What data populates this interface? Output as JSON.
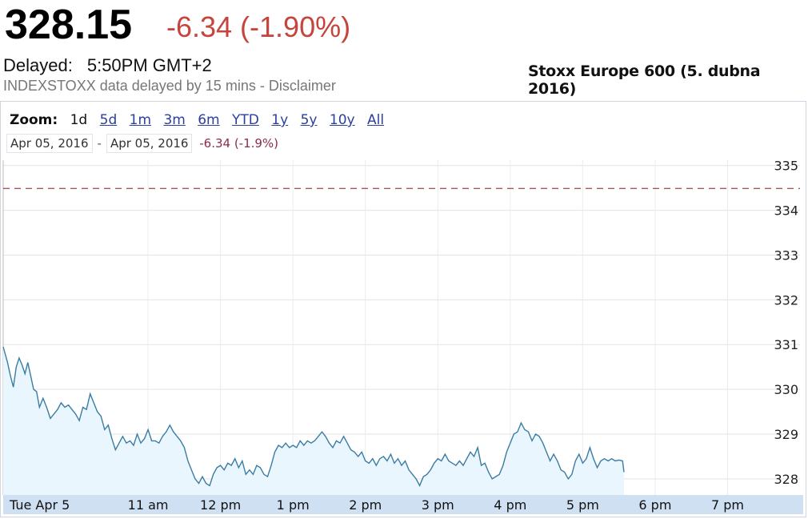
{
  "header": {
    "price": "328.15",
    "change": "-6.34 (-1.90%)",
    "delayed_label": "Delayed:",
    "delayed_time": "5:50PM GMT+2",
    "disclaimer": "INDEXSTOXX data delayed by 15 mins - Disclaimer",
    "title": "Stoxx Europe 600 (5. dubna 2016)"
  },
  "zoom": {
    "label": "Zoom:",
    "options": [
      "1d",
      "5d",
      "1m",
      "3m",
      "6m",
      "YTD",
      "1y",
      "5y",
      "10y",
      "All"
    ],
    "selected": "1d"
  },
  "range": {
    "from": "Apr 05, 2016",
    "separator": "-",
    "to": "Apr 05, 2016",
    "change": "-6.34 (-1.9%)"
  },
  "colors": {
    "line": "#3b7ca3",
    "fill": "#eaf6fd",
    "prev_close": "#8b1c1c",
    "axis_band": "#cfe0f2",
    "change_negative": "#c5453e"
  },
  "chart_data": {
    "type": "line",
    "x_unit": "hour",
    "x_ticks": [
      {
        "x": 9.0,
        "label": "Tue Apr 5"
      },
      {
        "x": 11.0,
        "label": "11 am"
      },
      {
        "x": 12.0,
        "label": "12 pm"
      },
      {
        "x": 13.0,
        "label": "1 pm"
      },
      {
        "x": 14.0,
        "label": "2 pm"
      },
      {
        "x": 15.0,
        "label": "3 pm"
      },
      {
        "x": 16.0,
        "label": "4 pm"
      },
      {
        "x": 17.0,
        "label": "5 pm"
      },
      {
        "x": 18.0,
        "label": "6 pm"
      },
      {
        "x": 19.0,
        "label": "7 pm"
      }
    ],
    "xlim": [
      9.0,
      20.0
    ],
    "y_ticks": [
      328,
      329,
      330,
      331,
      332,
      333,
      334,
      335
    ],
    "ylim": [
      327.64,
      335.12
    ],
    "previous_close": 334.49,
    "grid": true,
    "series": [
      {
        "points": [
          [
            9.0,
            330.95
          ],
          [
            9.06,
            330.6
          ],
          [
            9.1,
            330.3
          ],
          [
            9.14,
            330.05
          ],
          [
            9.18,
            330.5
          ],
          [
            9.22,
            330.7
          ],
          [
            9.26,
            330.55
          ],
          [
            9.3,
            330.35
          ],
          [
            9.34,
            330.6
          ],
          [
            9.38,
            330.3
          ],
          [
            9.42,
            330.0
          ],
          [
            9.46,
            329.95
          ],
          [
            9.5,
            329.6
          ],
          [
            9.55,
            329.8
          ],
          [
            9.6,
            329.6
          ],
          [
            9.65,
            329.35
          ],
          [
            9.7,
            329.45
          ],
          [
            9.75,
            329.55
          ],
          [
            9.8,
            329.7
          ],
          [
            9.85,
            329.6
          ],
          [
            9.9,
            329.65
          ],
          [
            9.95,
            329.55
          ],
          [
            10.0,
            329.45
          ],
          [
            10.05,
            329.3
          ],
          [
            10.1,
            329.6
          ],
          [
            10.15,
            329.55
          ],
          [
            10.2,
            329.9
          ],
          [
            10.25,
            329.7
          ],
          [
            10.3,
            329.5
          ],
          [
            10.35,
            329.4
          ],
          [
            10.4,
            329.1
          ],
          [
            10.45,
            329.2
          ],
          [
            10.5,
            328.9
          ],
          [
            10.55,
            328.65
          ],
          [
            10.6,
            328.8
          ],
          [
            10.65,
            328.95
          ],
          [
            10.7,
            328.8
          ],
          [
            10.75,
            328.85
          ],
          [
            10.8,
            328.75
          ],
          [
            10.85,
            329.0
          ],
          [
            10.9,
            328.8
          ],
          [
            10.95,
            328.9
          ],
          [
            11.0,
            329.1
          ],
          [
            11.05,
            328.85
          ],
          [
            11.1,
            328.85
          ],
          [
            11.15,
            328.8
          ],
          [
            11.2,
            328.95
          ],
          [
            11.25,
            329.05
          ],
          [
            11.3,
            329.2
          ],
          [
            11.35,
            329.05
          ],
          [
            11.4,
            328.95
          ],
          [
            11.45,
            328.85
          ],
          [
            11.5,
            328.7
          ],
          [
            11.55,
            328.4
          ],
          [
            11.6,
            328.2
          ],
          [
            11.65,
            328.0
          ],
          [
            11.7,
            327.9
          ],
          [
            11.75,
            328.05
          ],
          [
            11.8,
            327.9
          ],
          [
            11.85,
            327.85
          ],
          [
            11.9,
            328.1
          ],
          [
            11.95,
            328.25
          ],
          [
            12.0,
            328.3
          ],
          [
            12.05,
            328.2
          ],
          [
            12.1,
            328.35
          ],
          [
            12.15,
            328.3
          ],
          [
            12.2,
            328.45
          ],
          [
            12.25,
            328.25
          ],
          [
            12.3,
            328.4
          ],
          [
            12.35,
            328.1
          ],
          [
            12.4,
            328.2
          ],
          [
            12.45,
            328.1
          ],
          [
            12.5,
            328.3
          ],
          [
            12.55,
            328.25
          ],
          [
            12.6,
            328.1
          ],
          [
            12.65,
            328.05
          ],
          [
            12.7,
            328.3
          ],
          [
            12.75,
            328.6
          ],
          [
            12.8,
            328.75
          ],
          [
            12.85,
            328.7
          ],
          [
            12.9,
            328.8
          ],
          [
            12.95,
            328.7
          ],
          [
            13.0,
            328.75
          ],
          [
            13.05,
            328.7
          ],
          [
            13.1,
            328.85
          ],
          [
            13.15,
            328.75
          ],
          [
            13.2,
            328.85
          ],
          [
            13.25,
            328.8
          ],
          [
            13.3,
            328.85
          ],
          [
            13.35,
            328.95
          ],
          [
            13.4,
            329.05
          ],
          [
            13.45,
            328.95
          ],
          [
            13.5,
            328.8
          ],
          [
            13.55,
            328.7
          ],
          [
            13.6,
            328.85
          ],
          [
            13.65,
            328.8
          ],
          [
            13.7,
            328.95
          ],
          [
            13.75,
            328.8
          ],
          [
            13.8,
            328.65
          ],
          [
            13.85,
            328.6
          ],
          [
            13.9,
            328.5
          ],
          [
            13.95,
            328.6
          ],
          [
            14.0,
            328.4
          ],
          [
            14.05,
            328.35
          ],
          [
            14.1,
            328.45
          ],
          [
            14.15,
            328.3
          ],
          [
            14.2,
            328.45
          ],
          [
            14.25,
            328.5
          ],
          [
            14.3,
            328.4
          ],
          [
            14.35,
            328.55
          ],
          [
            14.4,
            328.35
          ],
          [
            14.45,
            328.45
          ],
          [
            14.5,
            328.3
          ],
          [
            14.55,
            328.4
          ],
          [
            14.6,
            328.2
          ],
          [
            14.65,
            328.1
          ],
          [
            14.7,
            328.0
          ],
          [
            14.75,
            327.85
          ],
          [
            14.8,
            328.05
          ],
          [
            14.85,
            328.1
          ],
          [
            14.9,
            328.2
          ],
          [
            14.95,
            328.35
          ],
          [
            15.0,
            328.45
          ],
          [
            15.05,
            328.4
          ],
          [
            15.1,
            328.55
          ],
          [
            15.15,
            328.4
          ],
          [
            15.2,
            328.35
          ],
          [
            15.25,
            328.3
          ],
          [
            15.3,
            328.4
          ],
          [
            15.35,
            328.3
          ],
          [
            15.4,
            328.45
          ],
          [
            15.45,
            328.6
          ],
          [
            15.5,
            328.5
          ],
          [
            15.55,
            328.7
          ],
          [
            15.6,
            328.3
          ],
          [
            15.65,
            328.35
          ],
          [
            15.7,
            328.15
          ],
          [
            15.75,
            328.0
          ],
          [
            15.8,
            328.05
          ],
          [
            15.85,
            328.1
          ],
          [
            15.9,
            328.3
          ],
          [
            15.95,
            328.6
          ],
          [
            16.0,
            328.8
          ],
          [
            16.05,
            329.0
          ],
          [
            16.1,
            329.05
          ],
          [
            16.15,
            329.25
          ],
          [
            16.2,
            329.1
          ],
          [
            16.25,
            329.05
          ],
          [
            16.3,
            328.85
          ],
          [
            16.35,
            329.0
          ],
          [
            16.4,
            328.95
          ],
          [
            16.45,
            328.8
          ],
          [
            16.5,
            328.6
          ],
          [
            16.55,
            328.4
          ],
          [
            16.6,
            328.55
          ],
          [
            16.65,
            328.4
          ],
          [
            16.7,
            328.2
          ],
          [
            16.75,
            328.15
          ],
          [
            16.8,
            328.0
          ],
          [
            16.85,
            328.1
          ],
          [
            16.9,
            328.4
          ],
          [
            16.95,
            328.55
          ],
          [
            17.0,
            328.35
          ],
          [
            17.05,
            328.45
          ],
          [
            17.1,
            328.7
          ],
          [
            17.15,
            328.45
          ],
          [
            17.2,
            328.25
          ],
          [
            17.25,
            328.4
          ],
          [
            17.3,
            328.45
          ],
          [
            17.35,
            328.4
          ],
          [
            17.4,
            328.45
          ],
          [
            17.45,
            328.4
          ],
          [
            17.5,
            328.42
          ],
          [
            17.55,
            328.4
          ],
          [
            17.57,
            328.15
          ]
        ]
      }
    ]
  }
}
